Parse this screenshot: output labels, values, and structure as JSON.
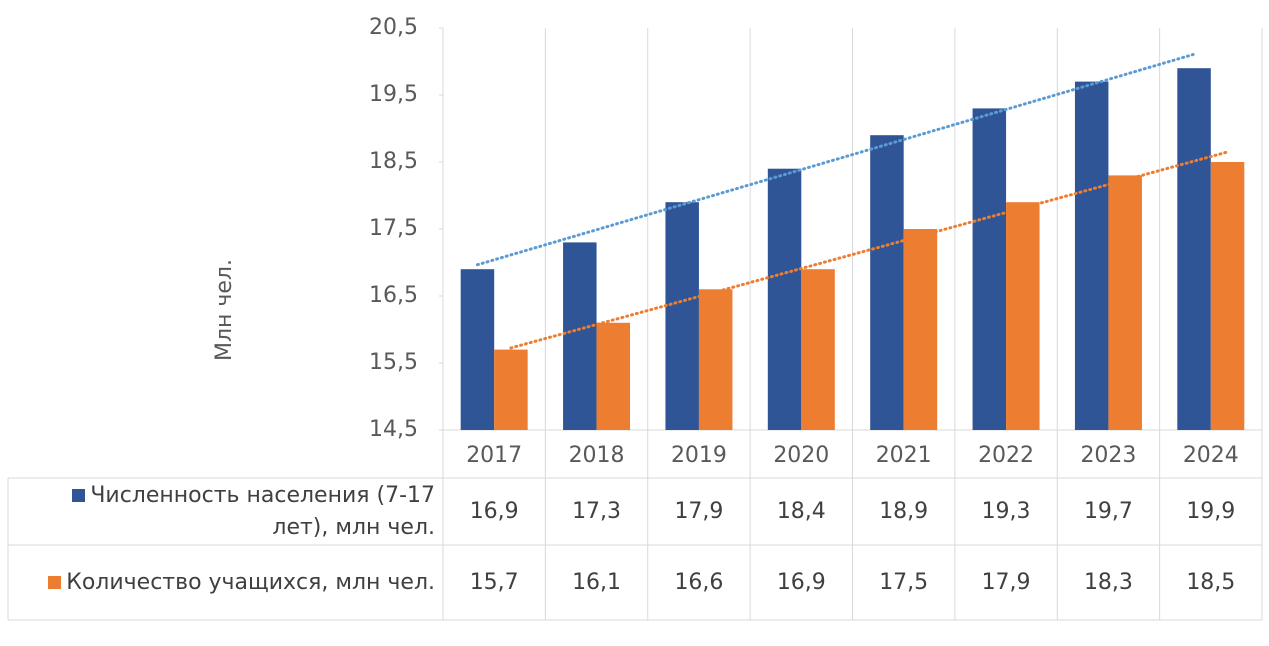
{
  "chart_data": {
    "type": "bar",
    "y_label": "Млн чел.",
    "categories": [
      "2017",
      "2018",
      "2019",
      "2020",
      "2021",
      "2022",
      "2023",
      "2024"
    ],
    "series": [
      {
        "name": "Численность населения (7-17 лет), млн чел.",
        "color": "#2f5597",
        "trend_color": "#5b9bd5",
        "values": [
          16.9,
          17.3,
          17.9,
          18.4,
          18.9,
          19.3,
          19.7,
          19.9
        ],
        "value_labels": [
          "16,9",
          "17,3",
          "17,9",
          "18,4",
          "18,9",
          "19,3",
          "19,7",
          "19,9"
        ]
      },
      {
        "name": "Количество учащихся, млн чел.",
        "color": "#ed7d31",
        "trend_color": "#ed7d31",
        "values": [
          15.7,
          16.1,
          16.6,
          16.9,
          17.5,
          17.9,
          18.3,
          18.5
        ],
        "value_labels": [
          "15,7",
          "16,1",
          "16,6",
          "16,9",
          "17,5",
          "17,9",
          "18,3",
          "18,5"
        ]
      }
    ],
    "ylim": [
      14.5,
      20.5
    ],
    "yticks": [
      {
        "value": 14.5,
        "label": "14,5"
      },
      {
        "value": 15.5,
        "label": "15,5"
      },
      {
        "value": 16.5,
        "label": "16,5"
      },
      {
        "value": 17.5,
        "label": "17,5"
      },
      {
        "value": 18.5,
        "label": "18,5"
      },
      {
        "value": 19.5,
        "label": "19,5"
      },
      {
        "value": 20.5,
        "label": "20,5"
      }
    ],
    "trendline": true,
    "data_table": true
  }
}
